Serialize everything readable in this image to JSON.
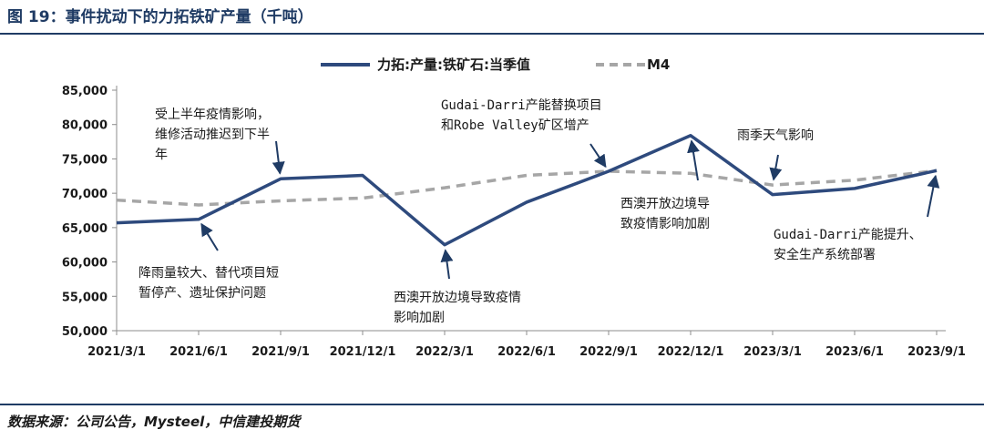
{
  "figure_title": "图 19：事件扰动下的力拓铁矿产量（千吨）",
  "source": "数据来源：公司公告，Mysteel，中信建投期货",
  "colors": {
    "accent": "#1f3b64",
    "series1": "#2e4a7d",
    "series2": "#a6a6a6"
  },
  "chart_data": {
    "type": "line",
    "title": "",
    "xlabel": "",
    "ylabel": "",
    "ylim": [
      50000,
      85000
    ],
    "yticks": [
      "50,000",
      "55,000",
      "60,000",
      "65,000",
      "70,000",
      "75,000",
      "80,000",
      "85,000"
    ],
    "categories": [
      "2021/3/1",
      "2021/6/1",
      "2021/9/1",
      "2021/12/1",
      "2022/3/1",
      "2022/6/1",
      "2022/9/1",
      "2022/12/1",
      "2023/3/1",
      "2023/6/1",
      "2023/9/1"
    ],
    "legend_position": "top",
    "grid": false,
    "series": [
      {
        "name": "力拓:产量:铁矿石:当季值",
        "style": "solid",
        "values": [
          65700,
          66200,
          72100,
          72600,
          62500,
          68700,
          73200,
          78400,
          69800,
          70700,
          73300
        ]
      },
      {
        "name": "M4",
        "style": "dashed",
        "values": [
          69000,
          68300,
          68900,
          69300,
          70800,
          72600,
          73200,
          72900,
          71200,
          71900,
          73300
        ]
      }
    ],
    "annotations": [
      {
        "lines": [
          "受上半年疫情影响，",
          "维修活动推迟到下半",
          "年"
        ],
        "target_index": 2,
        "target_series": 0
      },
      {
        "lines": [
          "降雨量较大、替代项目短",
          "暂停产、遗址保护问题"
        ],
        "target_index": 1,
        "target_series": 0
      },
      {
        "lines": [
          "西澳开放边境导致疫情",
          "影响加剧"
        ],
        "target_index": 4,
        "target_series": 0
      },
      {
        "lines": [
          "Gudai-Darri产能替换项目",
          "和Robe Valley矿区增产"
        ],
        "target_index": 6,
        "target_series": 0
      },
      {
        "lines": [
          "西澳开放边境导",
          "致疫情影响加剧"
        ],
        "target_index": 7,
        "target_series": 0
      },
      {
        "lines": [
          "雨季天气影响"
        ],
        "target_index": 8,
        "target_series": 1
      },
      {
        "lines": [
          "Gudai-Darri产能提升、",
          "安全生产系统部署"
        ],
        "target_index": 10,
        "target_series": 0
      }
    ]
  }
}
